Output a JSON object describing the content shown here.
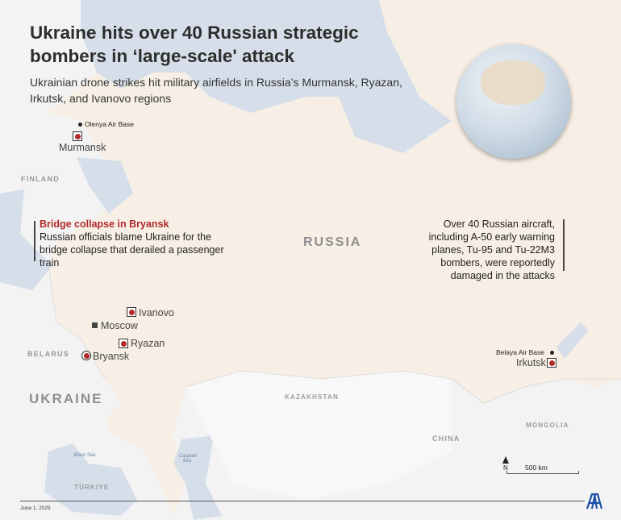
{
  "header": {
    "title": "Ukraine hits over 40 Russian strategic bombers in ‘large-scale' attack",
    "subtitle": "Ukrainian drone strikes hit military airfields in Russia’s Murmansk, Ryazan, Irkutsk, and Ivanovo regions"
  },
  "countries": {
    "russia": "RUSSIA",
    "ukraine": "UKRAINE",
    "finland": "FINLAND",
    "belarus": "BELARUS",
    "kazakhstan": "KAZAKHSTAN",
    "china": "CHINA",
    "mongolia": "MONGOLIA",
    "turkiye": "TÜRKİYE"
  },
  "seas": {
    "black": "Black Sea",
    "caspian": "Caspian Sea"
  },
  "places": {
    "olenya": "Olenya Air Base",
    "murmansk": "Murmansk",
    "ivanovo": "Ivanovo",
    "moscow": "Moscow",
    "ryazan": "Ryazan",
    "bryansk": "Bryansk",
    "belaya": "Belaya Air Base",
    "irkutsk": "Irkutsk"
  },
  "notes": {
    "bridge_title": "Bridge collapse in Bryansk",
    "bridge_text": "Russian officials blame Ukraine for the bridge collapse that derailed a passenger train",
    "aircraft_text": "Over 40 Russian aircraft, including A-50 early warning planes, Tu-95 and Tu-22M3 bombers, were reportedly damaged in the attacks"
  },
  "scale": {
    "north": "N",
    "distance": "500 km"
  },
  "footer": {
    "date": "June 1, 2025",
    "logo": "AA"
  },
  "colors": {
    "accent": "#b22a2a",
    "russia": "#f7efe5",
    "sea": "#d6dfe9",
    "land": "#f3f3f4"
  }
}
